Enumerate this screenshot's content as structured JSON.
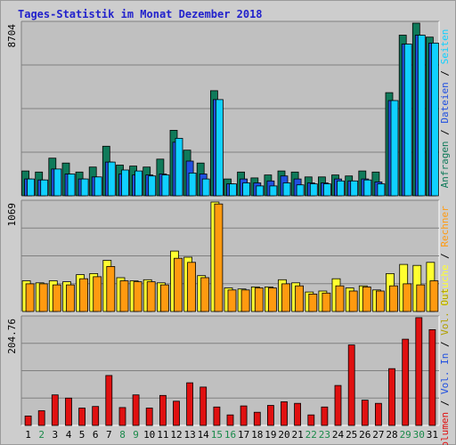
{
  "title": "Tages-Statistik im Monat Dezember 2018",
  "colors": {
    "anfragen": "#0f7a5a",
    "dateien": "#2050e0",
    "seiten": "#10d0ff",
    "besuche": "#ffff30",
    "rechner": "#ff9a10",
    "volumen": "#e01010",
    "weekday_label": "#000000",
    "weekend_label": "#1a8a4a",
    "panel_bg": "#c0c0c0",
    "frame_bg": "#cdcdcd"
  },
  "chart_data": [
    {
      "type": "bar",
      "panel": "top",
      "ymax_label": "8704",
      "ylim": [
        0,
        8704
      ],
      "categories": [
        "1",
        "2",
        "3",
        "4",
        "5",
        "6",
        "7",
        "8",
        "9",
        "10",
        "11",
        "12",
        "13",
        "14",
        "15",
        "16",
        "17",
        "18",
        "19",
        "20",
        "21",
        "22",
        "23",
        "24",
        "25",
        "26",
        "27",
        "28",
        "29",
        "30",
        "31"
      ],
      "weekend": [
        false,
        true,
        false,
        false,
        false,
        false,
        false,
        true,
        true,
        false,
        false,
        false,
        false,
        false,
        true,
        true,
        false,
        false,
        false,
        false,
        false,
        true,
        true,
        false,
        false,
        false,
        false,
        false,
        true,
        true,
        false
      ],
      "legend": [
        "Anfragen",
        "Dateien",
        "Seiten"
      ],
      "legend_sep": " / ",
      "series": [
        {
          "name": "Anfragen",
          "color": "#0f7a5a",
          "values": [
            1250,
            1200,
            1900,
            1650,
            1200,
            1450,
            2500,
            1550,
            1500,
            1450,
            1850,
            3300,
            2300,
            1650,
            5300,
            850,
            1200,
            900,
            1050,
            1250,
            1200,
            950,
            950,
            1050,
            1000,
            1250,
            1200,
            5200,
            8100,
            8704,
            8000
          ]
        },
        {
          "name": "Dateien",
          "color": "#2050e0",
          "values": [
            850,
            800,
            1350,
            1100,
            850,
            950,
            1700,
            1100,
            1050,
            1050,
            1100,
            2700,
            1750,
            1100,
            4850,
            600,
            850,
            650,
            750,
            1000,
            850,
            650,
            650,
            850,
            750,
            850,
            700,
            4800,
            7650,
            8100,
            7700
          ]
        },
        {
          "name": "Seiten",
          "color": "#10d0ff",
          "values": [
            850,
            800,
            1350,
            1100,
            850,
            950,
            1700,
            1300,
            1250,
            1000,
            1050,
            2900,
            1150,
            850,
            4850,
            600,
            650,
            500,
            500,
            650,
            550,
            600,
            600,
            750,
            750,
            800,
            600,
            4800,
            7650,
            8100,
            7700
          ]
        }
      ]
    },
    {
      "type": "bar",
      "panel": "middle",
      "ymax_label": "1069",
      "ylim": [
        0,
        1069
      ],
      "categories": [
        "1",
        "2",
        "3",
        "4",
        "5",
        "6",
        "7",
        "8",
        "9",
        "10",
        "11",
        "12",
        "13",
        "14",
        "15",
        "16",
        "17",
        "18",
        "19",
        "20",
        "21",
        "22",
        "23",
        "24",
        "25",
        "26",
        "27",
        "28",
        "29",
        "30",
        "31"
      ],
      "legend": [
        "Besuche",
        "Rechner"
      ],
      "series": [
        {
          "name": "Besuche",
          "color": "#ffff30",
          "values": [
            300,
            280,
            300,
            290,
            360,
            370,
            500,
            330,
            300,
            310,
            280,
            590,
            530,
            350,
            1069,
            230,
            220,
            240,
            240,
            310,
            280,
            190,
            200,
            320,
            230,
            250,
            210,
            370,
            460,
            450,
            480
          ]
        },
        {
          "name": "Rechner",
          "color": "#ff9a10",
          "values": [
            270,
            270,
            260,
            260,
            320,
            340,
            440,
            300,
            290,
            290,
            260,
            520,
            480,
            330,
            1050,
            210,
            210,
            230,
            230,
            270,
            250,
            170,
            180,
            250,
            200,
            240,
            200,
            250,
            270,
            260,
            300
          ]
        }
      ]
    },
    {
      "type": "bar",
      "panel": "bottom",
      "ymax_label": "204.76",
      "ylim": [
        0,
        204.76
      ],
      "categories": [
        "1",
        "2",
        "3",
        "4",
        "5",
        "6",
        "7",
        "8",
        "9",
        "10",
        "11",
        "12",
        "13",
        "14",
        "15",
        "16",
        "17",
        "18",
        "19",
        "20",
        "21",
        "22",
        "23",
        "24",
        "25",
        "26",
        "27",
        "28",
        "29",
        "30",
        "31"
      ],
      "legend": [
        "Volumen",
        "Vol. In",
        "Vol. Out"
      ],
      "legend_sep": " / ",
      "series": [
        {
          "name": "Volumen",
          "color": "#e01010",
          "values": [
            18,
            28,
            58,
            52,
            33,
            36,
            95,
            34,
            58,
            33,
            57,
            46,
            81,
            73,
            35,
            20,
            37,
            25,
            38,
            45,
            42,
            20,
            35,
            76,
            153,
            48,
            42,
            108,
            164,
            205,
            182
          ]
        }
      ]
    }
  ]
}
